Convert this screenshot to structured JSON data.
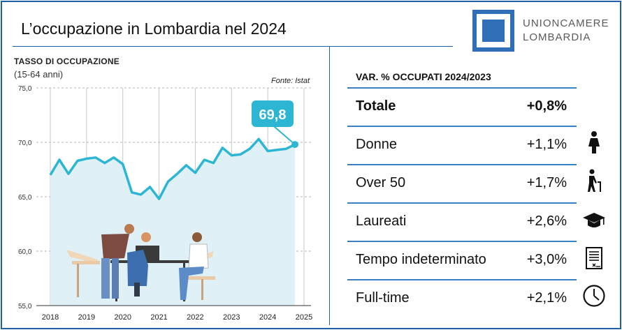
{
  "header": {
    "title": "L’occupazione in Lombardia nel 2024",
    "logo_line1": "UNIONCAMERE",
    "logo_line2": "LOMBARDIA"
  },
  "chart_data": {
    "type": "area",
    "title": "TASSO DI OCCUPAZIONE",
    "subtitle": "(15-64 anni)",
    "source": "Fonte: Istat",
    "x_ticks": [
      "2018",
      "2019",
      "2020",
      "2021",
      "2022",
      "2023",
      "2024",
      "2025"
    ],
    "y_ticks": [
      "55,0",
      "60,0",
      "65,0",
      "70,0",
      "75,0"
    ],
    "xlim": [
      2018,
      2025
    ],
    "ylim": [
      55,
      75
    ],
    "series": [
      {
        "values": [
          [
            2018.0,
            67.0
          ],
          [
            2018.25,
            68.4
          ],
          [
            2018.5,
            67.1
          ],
          [
            2018.75,
            68.3
          ],
          [
            2019.0,
            68.5
          ],
          [
            2019.25,
            68.6
          ],
          [
            2019.5,
            68.1
          ],
          [
            2019.75,
            68.6
          ],
          [
            2020.0,
            68.0
          ],
          [
            2020.25,
            65.4
          ],
          [
            2020.5,
            65.2
          ],
          [
            2020.75,
            65.9
          ],
          [
            2021.0,
            64.8
          ],
          [
            2021.25,
            66.4
          ],
          [
            2021.5,
            67.1
          ],
          [
            2021.75,
            67.9
          ],
          [
            2022.0,
            67.2
          ],
          [
            2022.25,
            68.4
          ],
          [
            2022.5,
            68.1
          ],
          [
            2022.75,
            69.5
          ],
          [
            2023.0,
            68.8
          ],
          [
            2023.25,
            68.9
          ],
          [
            2023.5,
            69.4
          ],
          [
            2023.75,
            70.3
          ],
          [
            2024.0,
            69.2
          ],
          [
            2024.25,
            69.3
          ],
          [
            2024.5,
            69.4
          ],
          [
            2024.75,
            69.8
          ]
        ]
      }
    ],
    "callout": "69,8",
    "colors": {
      "line": "#2cb6d4",
      "fill": "#dff1f6",
      "callout": "#2cb6d4",
      "grid": "#c9c9c9"
    },
    "grid": true
  },
  "table": {
    "title": "VAR. % OCCUPATI 2024/2023",
    "rows": [
      {
        "label": "Totale",
        "value": "+0,8%",
        "icon": "none"
      },
      {
        "label": "Donne",
        "value": "+1,1%",
        "icon": "woman-icon"
      },
      {
        "label": "Over 50",
        "value": "+1,7%",
        "icon": "elderly-person-icon"
      },
      {
        "label": "Laureati",
        "value": "+2,6%",
        "icon": "graduation-cap-icon"
      },
      {
        "label": "Tempo indeterminato",
        "value": "+3,0%",
        "icon": "contract-document-icon"
      },
      {
        "label": "Full-time",
        "value": "+2,1%",
        "icon": "clock-icon"
      }
    ]
  }
}
